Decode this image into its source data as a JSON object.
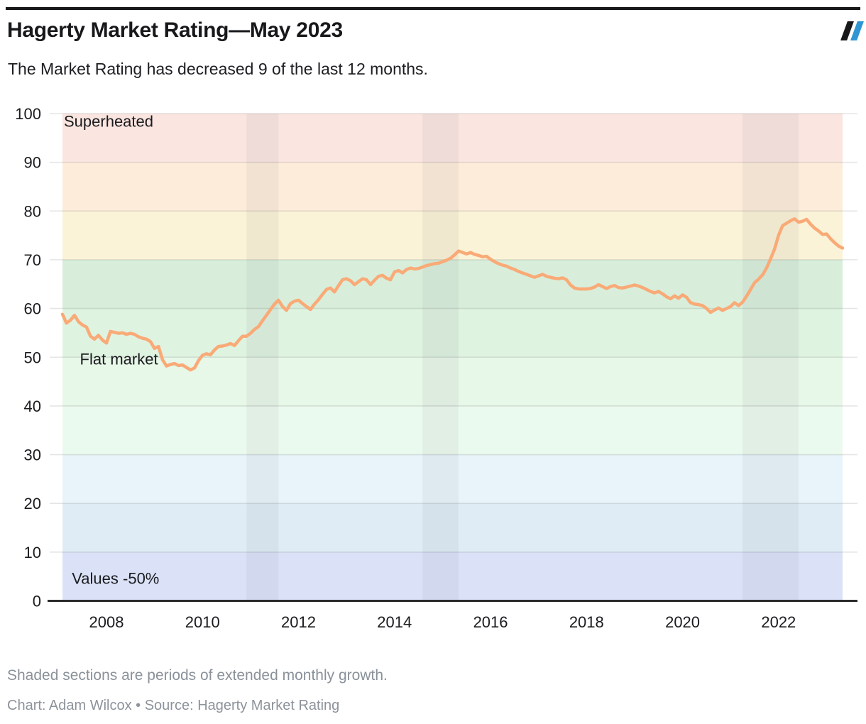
{
  "header": {
    "title": "Hagerty Market Rating—May 2023",
    "subtitle": "The Market Rating has decreased 9 of the last 12 months.",
    "logo_colors": {
      "first_slash": "#17181a",
      "second_slash": "#2e96d3"
    }
  },
  "footer": {
    "note": "Shaded sections are periods of extended monthly growth.",
    "byline": "Chart: Adam Wilcox • Source: Hagerty Market Rating"
  },
  "chart_data": {
    "type": "line",
    "title": "Hagerty Market Rating—May 2023",
    "xlabel": "",
    "ylabel": "",
    "ylim": [
      0,
      100
    ],
    "grid": true,
    "y_ticks": [
      0,
      10,
      20,
      30,
      40,
      50,
      60,
      70,
      80,
      90,
      100
    ],
    "x_tick_labels": [
      2008,
      2010,
      2012,
      2014,
      2016,
      2018,
      2020,
      2022
    ],
    "x_start_month": "2007-02",
    "x_end_month": "2023-05",
    "series": [
      {
        "name": "Hagerty Market Rating",
        "color": "#f9aa77",
        "interval": "monthly",
        "start_month": "2007-02",
        "values": [
          58.8,
          57.0,
          57.6,
          58.6,
          57.3,
          56.6,
          56.2,
          54.3,
          53.7,
          54.5,
          53.5,
          52.9,
          55.3,
          55.1,
          54.9,
          55.0,
          54.7,
          54.9,
          54.7,
          54.2,
          53.9,
          53.7,
          53.2,
          51.8,
          52.2,
          49.5,
          48.2,
          48.5,
          48.7,
          48.3,
          48.4,
          47.9,
          47.4,
          47.8,
          49.3,
          50.4,
          50.7,
          50.5,
          51.5,
          52.2,
          52.3,
          52.5,
          52.8,
          52.4,
          53.4,
          54.3,
          54.3,
          54.9,
          55.7,
          56.3,
          57.5,
          58.6,
          59.8,
          60.9,
          61.7,
          60.4,
          59.6,
          61.0,
          61.5,
          61.7,
          61.0,
          60.4,
          59.8,
          60.9,
          61.8,
          62.9,
          63.9,
          64.2,
          63.4,
          64.7,
          65.9,
          66.1,
          65.7,
          64.9,
          65.5,
          66.1,
          65.9,
          64.9,
          65.8,
          66.6,
          66.8,
          66.2,
          65.9,
          67.5,
          67.8,
          67.3,
          68.0,
          68.3,
          68.1,
          68.2,
          68.5,
          68.8,
          69.0,
          69.2,
          69.3,
          69.6,
          69.9,
          70.3,
          71.0,
          71.8,
          71.5,
          71.2,
          71.5,
          71.1,
          70.9,
          70.6,
          70.7,
          70.1,
          69.6,
          69.2,
          68.9,
          68.7,
          68.3,
          68.0,
          67.6,
          67.3,
          67.0,
          66.7,
          66.4,
          66.7,
          67.0,
          66.6,
          66.4,
          66.2,
          66.1,
          66.3,
          65.9,
          64.8,
          64.2,
          64.0,
          64.0,
          64.0,
          64.1,
          64.4,
          64.9,
          64.5,
          64.1,
          64.5,
          64.7,
          64.3,
          64.2,
          64.4,
          64.6,
          64.8,
          64.6,
          64.3,
          63.9,
          63.5,
          63.2,
          63.5,
          63.0,
          62.4,
          62.0,
          62.6,
          62.1,
          62.8,
          62.3,
          61.2,
          60.9,
          60.8,
          60.6,
          60.0,
          59.2,
          59.7,
          60.1,
          59.6,
          60.0,
          60.4,
          61.2,
          60.6,
          61.3,
          62.5,
          63.9,
          65.3,
          66.0,
          66.9,
          68.3,
          70.2,
          72.2,
          75.0,
          77.0,
          77.5,
          78.0,
          78.4,
          77.7,
          77.9,
          78.3,
          77.3,
          76.5,
          75.9,
          75.2,
          75.3,
          74.3,
          73.5,
          72.8,
          72.4
        ]
      }
    ],
    "zones": [
      {
        "from": 0,
        "to": 10,
        "color": "#dbe2f7"
      },
      {
        "from": 10,
        "to": 20,
        "color": "#dfecf6"
      },
      {
        "from": 20,
        "to": 30,
        "color": "#e8f4fa"
      },
      {
        "from": 30,
        "to": 40,
        "color": "#ebfaef"
      },
      {
        "from": 40,
        "to": 50,
        "color": "#e7f7e8"
      },
      {
        "from": 50,
        "to": 60,
        "color": "#dff3e1"
      },
      {
        "from": 60,
        "to": 70,
        "color": "#d8eedb"
      },
      {
        "from": 70,
        "to": 80,
        "color": "#faf3d7"
      },
      {
        "from": 80,
        "to": 90,
        "color": "#fcecd9"
      },
      {
        "from": 90,
        "to": 100,
        "color": "#fae5e0"
      }
    ],
    "annotations": [
      {
        "text": "Superheated",
        "month": "2007-02",
        "value": 97.3
      },
      {
        "text": "Flat market",
        "month": "2007-06",
        "value": 48.5
      },
      {
        "text": "Values -50%",
        "month": "2007-04",
        "value": 3.5
      }
    ],
    "growth_bands": [
      {
        "from": "2010-12",
        "to": "2011-08"
      },
      {
        "from": "2014-08",
        "to": "2015-05"
      },
      {
        "from": "2021-04",
        "to": "2022-06"
      }
    ],
    "growth_band_color": "rgba(70,70,85,0.06)",
    "grid_color": "rgba(0,0,0,0.10)",
    "axis_color": "#2b2b2b",
    "legend": "none"
  }
}
